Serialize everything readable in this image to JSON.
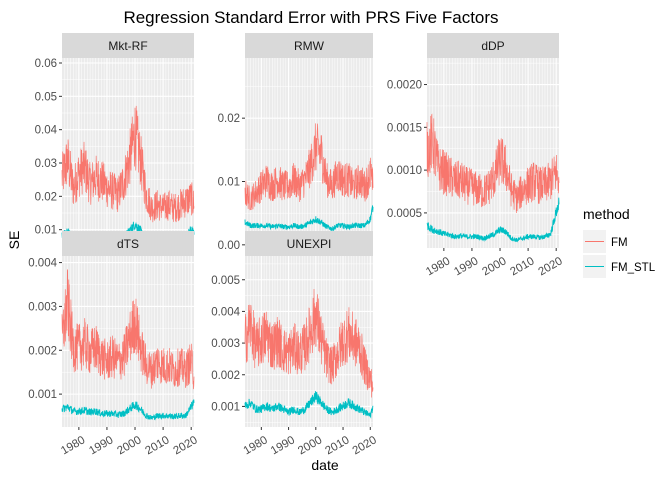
{
  "chart_data": {
    "type": "line",
    "title": "Regression Standard Error with PRS Five Factors",
    "xlabel": "date",
    "ylabel": "SE",
    "legend": {
      "title": "method",
      "position": "right",
      "entries": [
        {
          "name": "FM",
          "color": "#F8766D"
        },
        {
          "name": "FM_STL",
          "color": "#00BFC4"
        }
      ]
    },
    "x_range": [
      1974,
      2021
    ],
    "x_ticks": [
      "1980",
      "1990",
      "2000",
      "2010",
      "2020"
    ],
    "grid": true,
    "panels": [
      {
        "name": "Mkt-RF",
        "ylim": [
          0.0045,
          0.0615
        ],
        "y_ticks": [
          "0.01",
          "0.02",
          "0.03",
          "0.04",
          "0.05",
          "0.06"
        ],
        "y_tick_values": [
          0.01,
          0.02,
          0.03,
          0.04,
          0.05,
          0.06
        ],
        "series": [
          {
            "name": "FM",
            "color": "#F8766D",
            "x": [
              1974,
              1976,
              1978,
              1980,
              1982,
              1984,
              1986,
              1988,
              1990,
              1992,
              1994,
              1996,
              1998,
              2000,
              2002,
              2004,
              2006,
              2008,
              2010,
              2012,
              2014,
              2016,
              2018,
              2020,
              2021
            ],
            "values": [
              0.025,
              0.03,
              0.022,
              0.026,
              0.028,
              0.023,
              0.025,
              0.024,
              0.022,
              0.021,
              0.02,
              0.024,
              0.03,
              0.038,
              0.03,
              0.02,
              0.016,
              0.017,
              0.016,
              0.017,
              0.016,
              0.017,
              0.018,
              0.019,
              0.017
            ]
          },
          {
            "name": "FM_STL",
            "color": "#00BFC4",
            "x": [
              1974,
              1976,
              1978,
              1980,
              1982,
              1984,
              1986,
              1988,
              1990,
              1992,
              1994,
              1996,
              1998,
              2000,
              2002,
              2004,
              2006,
              2008,
              2010,
              2012,
              2014,
              2016,
              2018,
              2020,
              2021
            ],
            "values": [
              0.0085,
              0.009,
              0.0075,
              0.008,
              0.0078,
              0.0075,
              0.0078,
              0.007,
              0.007,
              0.0072,
              0.007,
              0.0075,
              0.0095,
              0.0115,
              0.0095,
              0.0065,
              0.0058,
              0.0058,
              0.006,
              0.006,
              0.0062,
              0.0062,
              0.0075,
              0.01,
              0.0085
            ]
          }
        ]
      },
      {
        "name": "RMW",
        "ylim": [
          -0.0005,
          0.0295
        ],
        "y_ticks": [
          "0.00",
          "0.01",
          "0.02"
        ],
        "y_tick_values": [
          0.0,
          0.01,
          0.02
        ],
        "series": [
          {
            "name": "FM",
            "color": "#F8766D",
            "x": [
              1974,
              1976,
              1978,
              1980,
              1982,
              1984,
              1986,
              1988,
              1990,
              1992,
              1994,
              1996,
              1998,
              2000,
              2002,
              2004,
              2006,
              2008,
              2010,
              2012,
              2014,
              2016,
              2018,
              2020,
              2021
            ],
            "values": [
              0.008,
              0.007,
              0.008,
              0.009,
              0.01,
              0.009,
              0.01,
              0.009,
              0.009,
              0.01,
              0.009,
              0.01,
              0.012,
              0.015,
              0.014,
              0.01,
              0.009,
              0.011,
              0.01,
              0.01,
              0.009,
              0.01,
              0.009,
              0.011,
              0.009
            ]
          },
          {
            "name": "FM_STL",
            "color": "#00BFC4",
            "x": [
              1974,
              1976,
              1978,
              1980,
              1982,
              1984,
              1986,
              1988,
              1990,
              1992,
              1994,
              1996,
              1998,
              2000,
              2002,
              2004,
              2006,
              2008,
              2010,
              2012,
              2014,
              2016,
              2018,
              2020,
              2021
            ],
            "values": [
              0.0035,
              0.003,
              0.003,
              0.003,
              0.003,
              0.0028,
              0.003,
              0.0028,
              0.0028,
              0.003,
              0.0028,
              0.003,
              0.0035,
              0.004,
              0.0035,
              0.0028,
              0.0025,
              0.003,
              0.003,
              0.0028,
              0.003,
              0.003,
              0.003,
              0.004,
              0.006
            ]
          }
        ]
      },
      {
        "name": "dDP",
        "ylim": [
          9e-05,
          0.00231
        ],
        "y_ticks": [
          "0.0005",
          "0.0010",
          "0.0015",
          "0.0020"
        ],
        "y_tick_values": [
          0.0005,
          0.001,
          0.0015,
          0.002
        ],
        "series": [
          {
            "name": "FM",
            "color": "#F8766D",
            "x": [
              1974,
              1976,
              1978,
              1980,
              1982,
              1984,
              1986,
              1988,
              1990,
              1992,
              1994,
              1996,
              1998,
              2000,
              2002,
              2004,
              2006,
              2008,
              2010,
              2012,
              2014,
              2016,
              2018,
              2020,
              2021
            ],
            "values": [
              0.0012,
              0.0013,
              0.001,
              0.00095,
              0.0009,
              0.00085,
              0.00085,
              0.0008,
              0.00078,
              0.00075,
              0.00072,
              0.00078,
              0.0009,
              0.0011,
              0.001,
              0.00075,
              0.00065,
              0.00075,
              0.0008,
              0.00085,
              0.0008,
              0.0008,
              0.00085,
              0.00095,
              0.00085
            ]
          },
          {
            "name": "FM_STL",
            "color": "#00BFC4",
            "x": [
              1974,
              1976,
              1978,
              1980,
              1982,
              1984,
              1986,
              1988,
              1990,
              1992,
              1994,
              1996,
              1998,
              2000,
              2002,
              2004,
              2006,
              2008,
              2010,
              2012,
              2014,
              2016,
              2018,
              2020,
              2021
            ],
            "values": [
              0.00035,
              0.0003,
              0.00028,
              0.00025,
              0.00024,
              0.00022,
              0.00023,
              0.00022,
              0.00022,
              0.00022,
              0.0002,
              0.00022,
              0.00025,
              0.0003,
              0.00028,
              0.0002,
              0.00018,
              0.0002,
              0.00022,
              0.00022,
              0.00021,
              0.00022,
              0.00025,
              0.0005,
              0.0006
            ]
          }
        ]
      },
      {
        "name": "dTS",
        "ylim": [
          0.00025,
          0.00415
        ],
        "y_ticks": [
          "0.001",
          "0.002",
          "0.003",
          "0.004"
        ],
        "y_tick_values": [
          0.001,
          0.002,
          0.003,
          0.004
        ],
        "series": [
          {
            "name": "FM",
            "color": "#F8766D",
            "x": [
              1974,
              1976,
              1978,
              1980,
              1982,
              1984,
              1986,
              1988,
              1990,
              1992,
              1994,
              1996,
              1998,
              2000,
              2002,
              2004,
              2006,
              2008,
              2010,
              2012,
              2014,
              2016,
              2018,
              2020,
              2021
            ],
            "values": [
              0.0022,
              0.003,
              0.002,
              0.002,
              0.0021,
              0.0019,
              0.002,
              0.0018,
              0.0017,
              0.0018,
              0.0017,
              0.0018,
              0.0022,
              0.0026,
              0.002,
              0.0016,
              0.0015,
              0.0017,
              0.0016,
              0.0016,
              0.0015,
              0.0016,
              0.0015,
              0.0017,
              0.0014
            ]
          },
          {
            "name": "FM_STL",
            "color": "#00BFC4",
            "x": [
              1974,
              1976,
              1978,
              1980,
              1982,
              1984,
              1986,
              1988,
              1990,
              1992,
              1994,
              1996,
              1998,
              2000,
              2002,
              2004,
              2006,
              2008,
              2010,
              2012,
              2014,
              2016,
              2018,
              2020,
              2021
            ],
            "values": [
              0.00065,
              0.0007,
              0.0006,
              0.0006,
              0.00062,
              0.00058,
              0.0006,
              0.00055,
              0.00055,
              0.00055,
              0.00052,
              0.00055,
              0.00065,
              0.00075,
              0.00065,
              0.0005,
              0.00045,
              0.0005,
              0.0005,
              0.0005,
              0.00048,
              0.0005,
              0.0005,
              0.0007,
              0.0008
            ]
          }
        ]
      },
      {
        "name": "UNEXPI",
        "ylim": [
          0.00035,
          0.00575
        ],
        "y_ticks": [
          "0.001",
          "0.002",
          "0.003",
          "0.004",
          "0.005"
        ],
        "y_tick_values": [
          0.001,
          0.002,
          0.003,
          0.004,
          0.005
        ],
        "series": [
          {
            "name": "FM",
            "color": "#F8766D",
            "x": [
              1974,
              1976,
              1978,
              1980,
              1982,
              1984,
              1986,
              1988,
              1990,
              1992,
              1994,
              1996,
              1998,
              2000,
              2002,
              2004,
              2006,
              2008,
              2010,
              2012,
              2014,
              2016,
              2018,
              2020,
              2021
            ],
            "values": [
              0.003,
              0.0035,
              0.0028,
              0.003,
              0.0032,
              0.0028,
              0.003,
              0.0027,
              0.0026,
              0.0028,
              0.0026,
              0.0028,
              0.0033,
              0.0038,
              0.003,
              0.0024,
              0.0022,
              0.0026,
              0.003,
              0.0032,
              0.003,
              0.0028,
              0.0022,
              0.0018,
              0.0016
            ]
          },
          {
            "name": "FM_STL",
            "color": "#00BFC4",
            "x": [
              1974,
              1976,
              1978,
              1980,
              1982,
              1984,
              1986,
              1988,
              1990,
              1992,
              1994,
              1996,
              1998,
              2000,
              2002,
              2004,
              2006,
              2008,
              2010,
              2012,
              2014,
              2016,
              2018,
              2020,
              2021
            ],
            "values": [
              0.001,
              0.0011,
              0.0009,
              0.0009,
              0.001,
              0.0009,
              0.001,
              0.0009,
              0.0008,
              0.0009,
              0.0008,
              0.0009,
              0.0011,
              0.0013,
              0.0011,
              0.0009,
              0.0008,
              0.0009,
              0.001,
              0.0011,
              0.001,
              0.0009,
              0.0008,
              0.0007,
              0.001
            ]
          }
        ]
      }
    ]
  }
}
